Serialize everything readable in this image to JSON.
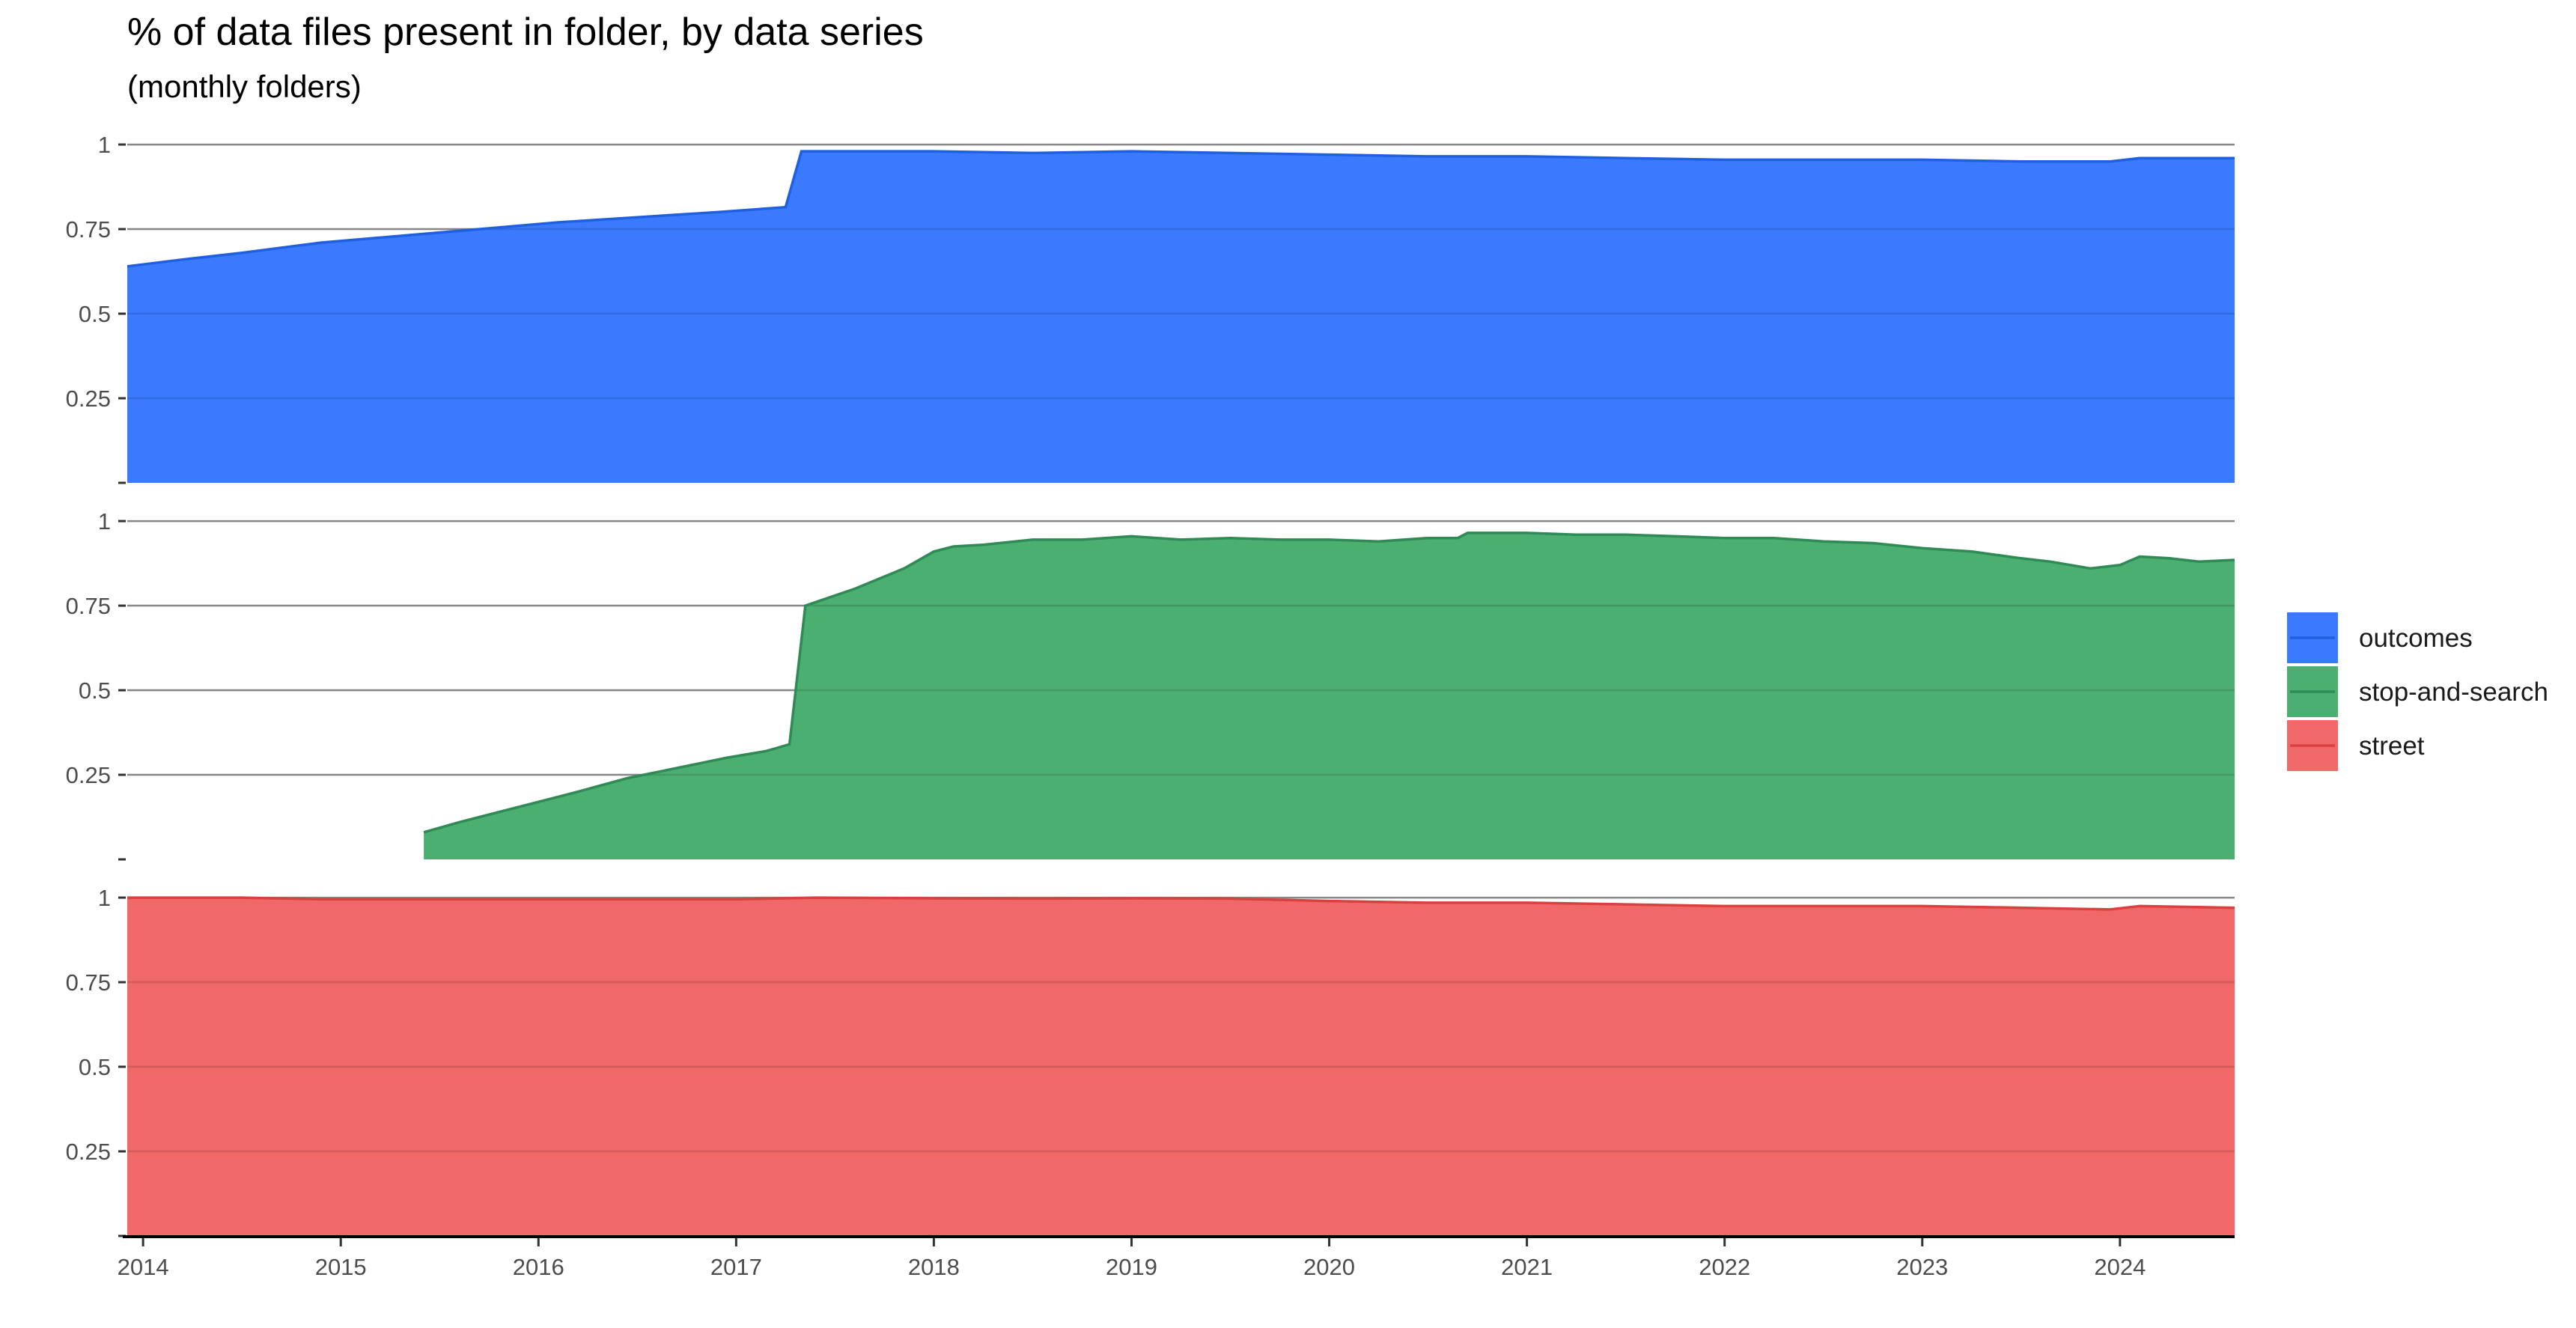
{
  "chart_data": {
    "type": "area",
    "title": "% of data files present in folder, by data series",
    "subtitle": "(monthly folders)",
    "xlabel": "",
    "ylabel": "",
    "facet_by": "series",
    "x_ticks": [
      "2014",
      "2015",
      "2016",
      "2017",
      "2018",
      "2019",
      "2020",
      "2021",
      "2022",
      "2023",
      "2024"
    ],
    "xlim": [
      2013.92,
      2024.58
    ],
    "y_ticks": [
      0.25,
      0.5,
      0.75,
      1
    ],
    "y_tick_labels": [
      "0.25",
      "0.5",
      "0.75",
      "1"
    ],
    "ylim": [
      0,
      1.04
    ],
    "grid": true,
    "legend_position": "right",
    "series": [
      {
        "name": "outcomes",
        "color": "#3a7afe",
        "line_color": "#1f5fe0",
        "points": [
          [
            2013.92,
            0.64
          ],
          [
            2014.2,
            0.66
          ],
          [
            2014.5,
            0.68
          ],
          [
            2014.9,
            0.71
          ],
          [
            2015.3,
            0.73
          ],
          [
            2015.7,
            0.75
          ],
          [
            2016.1,
            0.77
          ],
          [
            2016.5,
            0.785
          ],
          [
            2016.9,
            0.8
          ],
          [
            2017.25,
            0.815
          ],
          [
            2017.33,
            0.98
          ],
          [
            2018.0,
            0.98
          ],
          [
            2018.5,
            0.975
          ],
          [
            2019.0,
            0.98
          ],
          [
            2019.5,
            0.975
          ],
          [
            2020.0,
            0.97
          ],
          [
            2020.5,
            0.965
          ],
          [
            2021.0,
            0.965
          ],
          [
            2021.5,
            0.96
          ],
          [
            2022.0,
            0.955
          ],
          [
            2022.5,
            0.955
          ],
          [
            2023.0,
            0.955
          ],
          [
            2023.5,
            0.95
          ],
          [
            2023.95,
            0.95
          ],
          [
            2024.1,
            0.96
          ],
          [
            2024.58,
            0.96
          ]
        ]
      },
      {
        "name": "stop-and-search",
        "color": "#4caf72",
        "line_color": "#2f8a55",
        "start": 2015.42,
        "points": [
          [
            2015.42,
            0.08
          ],
          [
            2015.6,
            0.11
          ],
          [
            2015.8,
            0.14
          ],
          [
            2016.0,
            0.17
          ],
          [
            2016.2,
            0.2
          ],
          [
            2016.45,
            0.24
          ],
          [
            2016.7,
            0.27
          ],
          [
            2016.95,
            0.3
          ],
          [
            2017.15,
            0.32
          ],
          [
            2017.27,
            0.34
          ],
          [
            2017.35,
            0.75
          ],
          [
            2017.6,
            0.8
          ],
          [
            2017.85,
            0.86
          ],
          [
            2018.0,
            0.91
          ],
          [
            2018.1,
            0.925
          ],
          [
            2018.25,
            0.93
          ],
          [
            2018.5,
            0.945
          ],
          [
            2018.75,
            0.945
          ],
          [
            2019.0,
            0.955
          ],
          [
            2019.25,
            0.945
          ],
          [
            2019.5,
            0.95
          ],
          [
            2019.75,
            0.945
          ],
          [
            2020.0,
            0.945
          ],
          [
            2020.25,
            0.94
          ],
          [
            2020.5,
            0.95
          ],
          [
            2020.65,
            0.95
          ],
          [
            2020.7,
            0.965
          ],
          [
            2021.0,
            0.965
          ],
          [
            2021.25,
            0.96
          ],
          [
            2021.5,
            0.96
          ],
          [
            2021.75,
            0.955
          ],
          [
            2022.0,
            0.95
          ],
          [
            2022.25,
            0.95
          ],
          [
            2022.5,
            0.94
          ],
          [
            2022.75,
            0.935
          ],
          [
            2023.0,
            0.92
          ],
          [
            2023.25,
            0.91
          ],
          [
            2023.5,
            0.89
          ],
          [
            2023.65,
            0.88
          ],
          [
            2023.75,
            0.87
          ],
          [
            2023.85,
            0.86
          ],
          [
            2024.0,
            0.87
          ],
          [
            2024.1,
            0.895
          ],
          [
            2024.25,
            0.89
          ],
          [
            2024.4,
            0.88
          ],
          [
            2024.58,
            0.885
          ]
        ]
      },
      {
        "name": "street",
        "color": "#f06868",
        "line_color": "#d94040",
        "points": [
          [
            2013.92,
            1.0
          ],
          [
            2014.5,
            1.0
          ],
          [
            2014.9,
            0.995
          ],
          [
            2015.5,
            0.995
          ],
          [
            2016.0,
            0.995
          ],
          [
            2016.5,
            0.995
          ],
          [
            2017.0,
            0.995
          ],
          [
            2017.4,
            1.0
          ],
          [
            2018.0,
            0.998
          ],
          [
            2018.5,
            0.997
          ],
          [
            2019.0,
            0.998
          ],
          [
            2019.5,
            0.997
          ],
          [
            2020.0,
            0.99
          ],
          [
            2020.5,
            0.985
          ],
          [
            2021.0,
            0.985
          ],
          [
            2021.5,
            0.98
          ],
          [
            2022.0,
            0.975
          ],
          [
            2022.5,
            0.975
          ],
          [
            2023.0,
            0.975
          ],
          [
            2023.5,
            0.97
          ],
          [
            2023.95,
            0.965
          ],
          [
            2024.1,
            0.975
          ],
          [
            2024.58,
            0.97
          ]
        ]
      }
    ]
  }
}
